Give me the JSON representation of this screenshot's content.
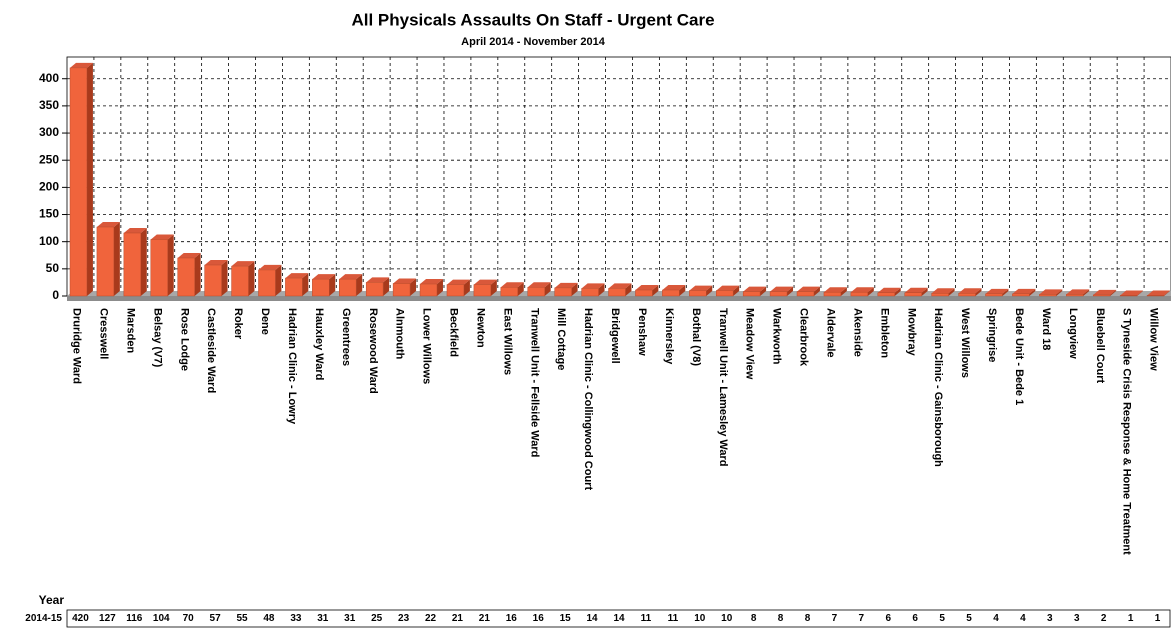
{
  "chart_data": {
    "type": "bar",
    "title": "All Physicals Assaults On Staff - Urgent Care",
    "subtitle": "April 2014 - November 2014",
    "categories": [
      "Druridge Ward",
      "Cresswell",
      "Marsden",
      "Belsay (V7)",
      "Rose Lodge",
      "Castleside Ward",
      "Roker",
      "Dene",
      "Hadrian Clinic - Lowry",
      "Hauxley Ward",
      "Greentrees",
      "Rosewood Ward",
      "Alnmouth",
      "Lower Willows",
      "Beckfield",
      "Newton",
      "East Willows",
      "Tranwell Unit - Fellside Ward",
      "Mill Cottage",
      "Hadrian Clinic - Collingwood Court",
      "Bridgewell",
      "Penshaw",
      "Kinnersley",
      "Bothal (V8)",
      "Tranwell Unit - Lamesley Ward",
      "Meadow View",
      "Warkworth",
      "Clearbrook",
      "Aldervale",
      "Akenside",
      "Embleton",
      "Mowbray",
      "Hadrian Clinic - Gainsborough",
      "West Willows",
      "Springrise",
      "Bede Unit - Bede 1",
      "Ward 18",
      "Longview",
      "Bluebell Court",
      "S Tyneside Crisis Response & Home Treatment",
      "Willow View"
    ],
    "table_header": "Year",
    "series": [
      {
        "name": "2014-15",
        "color": "#f0643c",
        "values": [
          420,
          127,
          116,
          104,
          70,
          57,
          55,
          48,
          33,
          31,
          31,
          25,
          23,
          22,
          21,
          21,
          16,
          16,
          15,
          14,
          14,
          11,
          11,
          10,
          10,
          8,
          8,
          8,
          7,
          7,
          6,
          6,
          5,
          5,
          4,
          4,
          3,
          3,
          2,
          1,
          1
        ]
      }
    ],
    "ylim": [
      0,
      440
    ],
    "yticks": [
      0,
      50,
      100,
      150,
      200,
      250,
      300,
      350,
      400
    ],
    "grid": true
  }
}
